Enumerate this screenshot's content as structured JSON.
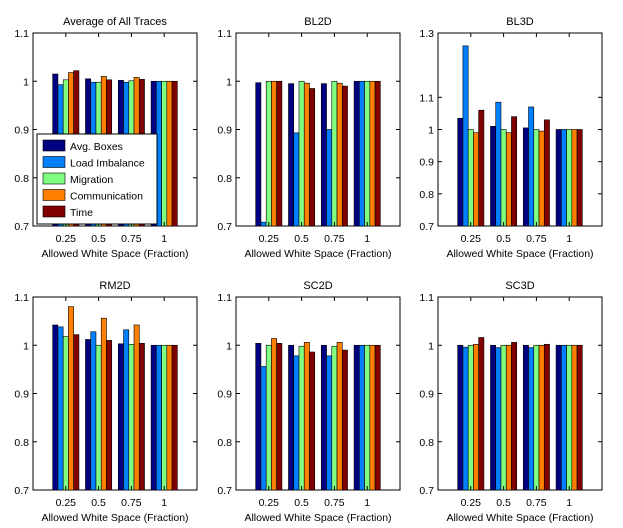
{
  "chart_data": [
    {
      "type": "bar",
      "title": "Average of All Traces",
      "xlabel": "Allowed White Space (Fraction)",
      "ylabel": "",
      "categories": [
        "0.25",
        "0.5",
        "0.75",
        "1"
      ],
      "ylim": [
        0.7,
        1.1
      ],
      "yticks": [
        "0.7",
        "0.8",
        "0.9",
        "1",
        "1.1"
      ],
      "legend": "inside-left",
      "series": [
        {
          "name": "Avg. Boxes",
          "color": "#000080",
          "values": [
            1.015,
            1.005,
            1.002,
            1.0
          ]
        },
        {
          "name": "Load Imbalance",
          "color": "#0080ff",
          "values": [
            0.993,
            0.998,
            0.998,
            1.0
          ]
        },
        {
          "name": "Migration",
          "color": "#80ff80",
          "values": [
            1.003,
            0.998,
            1.001,
            1.0
          ]
        },
        {
          "name": "Communication",
          "color": "#ff8000",
          "values": [
            1.018,
            1.01,
            1.008,
            1.0
          ]
        },
        {
          "name": "Time",
          "color": "#800000",
          "values": [
            1.022,
            1.003,
            1.004,
            1.0
          ]
        }
      ]
    },
    {
      "type": "bar",
      "title": "BL2D",
      "xlabel": "Allowed White Space (Fraction)",
      "categories": [
        "0.25",
        "0.5",
        "0.75",
        "1"
      ],
      "ylim": [
        0.7,
        1.1
      ],
      "yticks": [
        "0.7",
        "0.8",
        "0.9",
        "1",
        "1.1"
      ],
      "series": [
        {
          "name": "Avg. Boxes",
          "color": "#000080",
          "values": [
            0.997,
            0.995,
            0.995,
            1.0
          ]
        },
        {
          "name": "Load Imbalance",
          "color": "#0080ff",
          "values": [
            0.708,
            0.893,
            0.9,
            1.0
          ]
        },
        {
          "name": "Migration",
          "color": "#80ff80",
          "values": [
            1.0,
            1.0,
            1.0,
            1.0
          ]
        },
        {
          "name": "Communication",
          "color": "#ff8000",
          "values": [
            1.0,
            0.996,
            0.996,
            1.0
          ]
        },
        {
          "name": "Time",
          "color": "#800000",
          "values": [
            1.0,
            0.985,
            0.99,
            1.0
          ]
        }
      ]
    },
    {
      "type": "bar",
      "title": "BL3D",
      "xlabel": "Allowed White Space (Fraction)",
      "categories": [
        "0.25",
        "0.5",
        "0.75",
        "1"
      ],
      "ylim": [
        0.7,
        1.3
      ],
      "yticks": [
        "0.7",
        "0.8",
        "0.9",
        "1",
        "1.1",
        "1.3"
      ],
      "series": [
        {
          "name": "Avg. Boxes",
          "color": "#000080",
          "values": [
            1.035,
            1.01,
            1.005,
            1.0
          ]
        },
        {
          "name": "Load Imbalance",
          "color": "#0080ff",
          "values": [
            1.26,
            1.085,
            1.07,
            1.0
          ]
        },
        {
          "name": "Migration",
          "color": "#80ff80",
          "values": [
            1.0,
            1.0,
            1.0,
            1.0
          ]
        },
        {
          "name": "Communication",
          "color": "#ff8000",
          "values": [
            0.99,
            0.99,
            0.995,
            1.0
          ]
        },
        {
          "name": "Time",
          "color": "#800000",
          "values": [
            1.06,
            1.04,
            1.03,
            1.0
          ]
        }
      ]
    },
    {
      "type": "bar",
      "title": "RM2D",
      "xlabel": "Allowed White Space (Fraction)",
      "categories": [
        "0.25",
        "0.5",
        "0.75",
        "1"
      ],
      "ylim": [
        0.7,
        1.1
      ],
      "yticks": [
        "0.7",
        "0.8",
        "0.9",
        "1",
        "1.1"
      ],
      "series": [
        {
          "name": "Avg. Boxes",
          "color": "#000080",
          "values": [
            1.042,
            1.012,
            1.003,
            1.0
          ]
        },
        {
          "name": "Load Imbalance",
          "color": "#0080ff",
          "values": [
            1.038,
            1.028,
            1.032,
            1.0
          ]
        },
        {
          "name": "Migration",
          "color": "#80ff80",
          "values": [
            1.018,
            1.0,
            1.002,
            1.0
          ]
        },
        {
          "name": "Communication",
          "color": "#ff8000",
          "values": [
            1.08,
            1.056,
            1.042,
            1.0
          ]
        },
        {
          "name": "Time",
          "color": "#800000",
          "values": [
            1.022,
            1.01,
            1.004,
            1.0
          ]
        }
      ]
    },
    {
      "type": "bar",
      "title": "SC2D",
      "xlabel": "Allowed White Space (Fraction)",
      "categories": [
        "0.25",
        "0.5",
        "0.75",
        "1"
      ],
      "ylim": [
        0.7,
        1.1
      ],
      "yticks": [
        "0.7",
        "0.8",
        "0.9",
        "1",
        "1.1"
      ],
      "series": [
        {
          "name": "Avg. Boxes",
          "color": "#000080",
          "values": [
            1.004,
            1.0,
            1.0,
            1.0
          ]
        },
        {
          "name": "Load Imbalance",
          "color": "#0080ff",
          "values": [
            0.956,
            0.978,
            0.978,
            1.0
          ]
        },
        {
          "name": "Migration",
          "color": "#80ff80",
          "values": [
            1.0,
            0.998,
            0.998,
            1.0
          ]
        },
        {
          "name": "Communication",
          "color": "#ff8000",
          "values": [
            1.014,
            1.006,
            1.006,
            1.0
          ]
        },
        {
          "name": "Time",
          "color": "#800000",
          "values": [
            1.004,
            0.986,
            0.99,
            1.0
          ]
        }
      ]
    },
    {
      "type": "bar",
      "title": "SC3D",
      "xlabel": "Allowed White Space (Fraction)",
      "categories": [
        "0.25",
        "0.5",
        "0.75",
        "1"
      ],
      "ylim": [
        0.7,
        1.1
      ],
      "yticks": [
        "0.7",
        "0.8",
        "0.9",
        "1",
        "1.1"
      ],
      "series": [
        {
          "name": "Avg. Boxes",
          "color": "#000080",
          "values": [
            1.0,
            1.0,
            1.0,
            1.0
          ]
        },
        {
          "name": "Load Imbalance",
          "color": "#0080ff",
          "values": [
            0.996,
            0.995,
            0.995,
            1.0
          ]
        },
        {
          "name": "Migration",
          "color": "#80ff80",
          "values": [
            1.0,
            1.0,
            1.0,
            1.0
          ]
        },
        {
          "name": "Communication",
          "color": "#ff8000",
          "values": [
            1.002,
            1.0,
            1.0,
            1.0
          ]
        },
        {
          "name": "Time",
          "color": "#800000",
          "values": [
            1.016,
            1.006,
            1.002,
            1.0
          ]
        }
      ]
    }
  ]
}
